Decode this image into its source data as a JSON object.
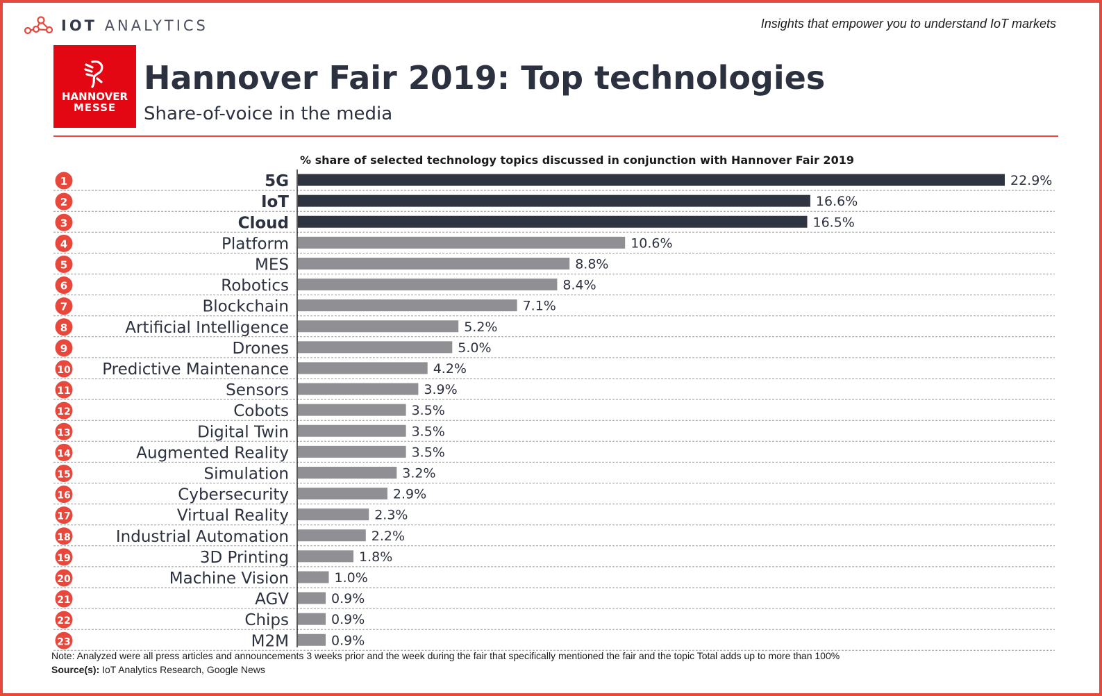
{
  "header": {
    "brand_bold": "IOT",
    "brand_light": "ANALYTICS",
    "tagline": "Insights that empower you to understand IoT markets",
    "logo_line1": "HANNOVER",
    "logo_line2": "MESSE",
    "title": "Hannover Fair 2019: Top technologies",
    "subtitle": "Share-of-voice in the media"
  },
  "footer": {
    "note": "Note: Analyzed were all press articles and announcements 3 weeks prior and the week during the fair that specifically mentioned the fair and the topic  Total adds up to more than 100%",
    "source_label": "Source(s):",
    "source_text": " IoT Analytics Research, Google News"
  },
  "colors": {
    "accent": "#e8483c",
    "logo_red": "#e30613",
    "bar_dark": "#2f3441",
    "bar_grey": "#8f8f94",
    "text_dark": "#2c3140"
  },
  "chart_data": {
    "type": "bar",
    "orientation": "horizontal",
    "title": "% share of selected technology topics discussed in conjunction with Hannover Fair 2019",
    "value_suffix": "%",
    "highlighted_top": 3,
    "ranks": [
      "1",
      "2",
      "3",
      "4",
      "5",
      "6",
      "7",
      "8",
      "9",
      "10",
      "11",
      "12",
      "13",
      "14",
      "15",
      "16",
      "17",
      "18",
      "19",
      "20",
      "21",
      "22",
      "23"
    ],
    "categories": [
      "5G",
      "IoT",
      "Cloud",
      "Platform",
      "MES",
      "Robotics",
      "Blockchain",
      "Artificial Intelligence",
      "Drones",
      "Predictive Maintenance",
      "Sensors",
      "Cobots",
      "Digital Twin",
      "Augmented Reality",
      "Simulation",
      "Cybersecurity",
      "Virtual Reality",
      "Industrial Automation",
      "3D Printing",
      "Machine Vision",
      "AGV",
      "Chips",
      "M2M"
    ],
    "values": [
      22.9,
      16.6,
      16.5,
      10.6,
      8.8,
      8.4,
      7.1,
      5.2,
      5.0,
      4.2,
      3.9,
      3.5,
      3.5,
      3.5,
      3.2,
      2.9,
      2.3,
      2.2,
      1.8,
      1.0,
      0.9,
      0.9,
      0.9
    ],
    "value_labels": [
      "22.9%",
      "16.6%",
      "16.5%",
      "10.6%",
      "8.8%",
      "8.4%",
      "7.1%",
      "5.2%",
      "5.0%",
      "4.2%",
      "3.9%",
      "3.5%",
      "3.5%",
      "3.5%",
      "3.2%",
      "2.9%",
      "2.3%",
      "2.2%",
      "1.8%",
      "1.0%",
      "0.9%",
      "0.9%",
      "0.9%"
    ],
    "grid": false,
    "legend": "none"
  }
}
